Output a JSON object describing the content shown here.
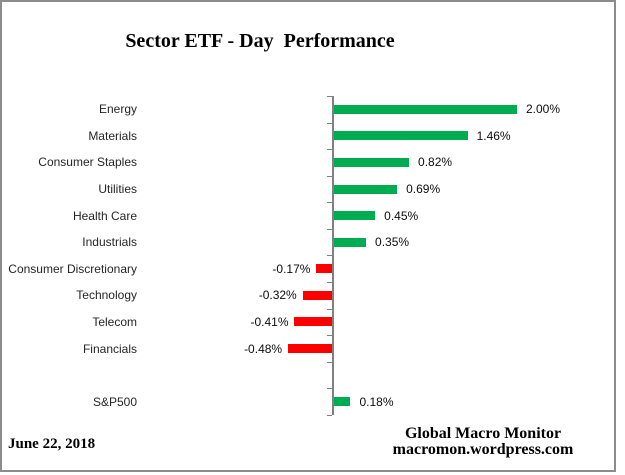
{
  "title": "Sector ETF - Day  Performance",
  "footer": {
    "date": "June 22, 2018",
    "source_line1": "Global Macro Monitor",
    "source_line2": "macromon.wordpress.com"
  },
  "colors": {
    "positive_bar": "#00AC50",
    "negative_bar": "#FF0000",
    "axis": "#808080",
    "frame": "#8C8C8C",
    "label_text": "#262626"
  },
  "chart_data": {
    "type": "bar",
    "orientation": "horizontal",
    "title": "Sector ETF - Day  Performance",
    "xlabel": "",
    "ylabel": "",
    "grid": false,
    "legend": false,
    "categories": [
      "Energy",
      "Materials",
      "Consumer Staples",
      "Utilities",
      "Health Care",
      "Industrials",
      "Consumer Discretionary",
      "Technology",
      "Telecom",
      "Financials",
      "S&P500"
    ],
    "values": [
      2.0,
      1.46,
      0.82,
      0.69,
      0.45,
      0.35,
      -0.17,
      -0.32,
      -0.41,
      -0.48,
      0.18
    ],
    "value_labels": [
      "2.00%",
      "1.46%",
      "0.82%",
      "0.69%",
      "0.45%",
      "0.35%",
      "-0.17%",
      "-0.32%",
      "-0.41%",
      "-0.48%",
      "0.18%"
    ],
    "gap_row_after_index": 9,
    "value_axis_at_zero": true,
    "xlim": [
      -2.3,
      3.1
    ]
  }
}
